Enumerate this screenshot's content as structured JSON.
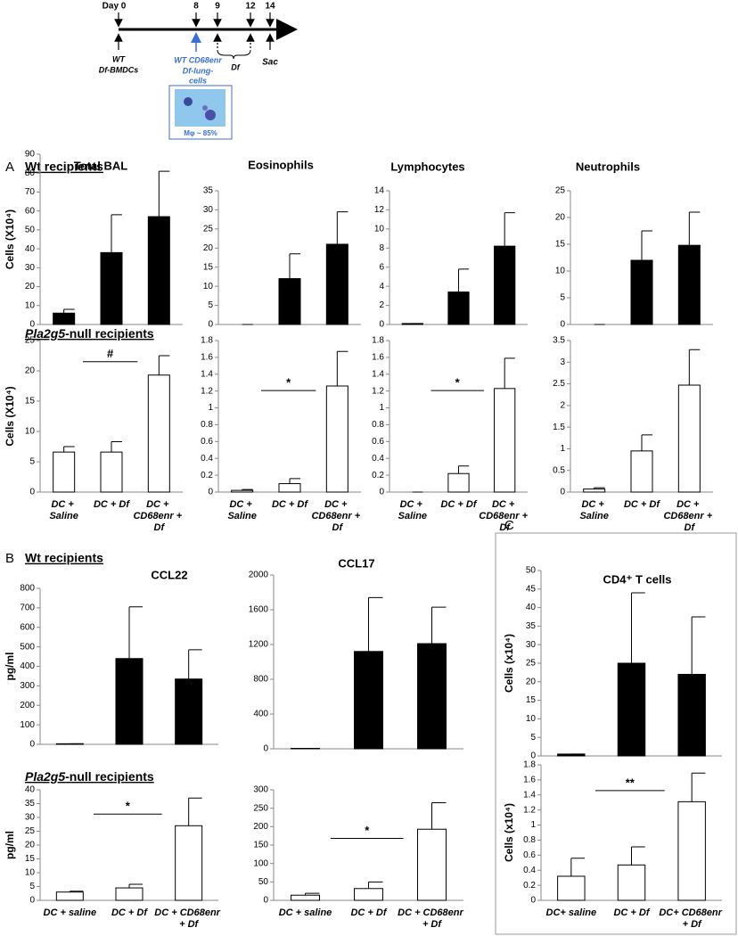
{
  "timeline": {
    "days": [
      "Day 0",
      "8",
      "9",
      "12",
      "14"
    ],
    "wt": "WT",
    "bmdc": "Df-BMDCs",
    "cd68": "WT CD68enr",
    "lung": "Df-lung-",
    "cells": "cells",
    "df": "Df",
    "sac": "Sac",
    "inset": "Mφ ~ 85%"
  },
  "figure": {
    "a_label": "A",
    "a_wt": "Wt recipients",
    "a_null_gene": "Pla2g5",
    "a_null_rest": "-null recipients",
    "b_label": "B",
    "b_wt": "Wt recipients",
    "b_null_gene": "Pla2g5",
    "b_null_rest": "-null recipients",
    "c_label": "C"
  },
  "chart_data": [
    {
      "type": "bar",
      "title": "Total BAL",
      "y_label": "Cells (X10⁴)",
      "categories": [
        null,
        null,
        null
      ],
      "values": [
        6,
        38,
        57
      ],
      "errors": [
        2,
        20,
        24
      ],
      "color": "#000000",
      "ylim": [
        0,
        90
      ],
      "yticks": [
        0,
        10,
        20,
        30,
        40,
        50,
        60,
        70,
        80,
        90
      ]
    },
    {
      "type": "bar",
      "title": "Eosinophils",
      "categories": [
        null,
        null,
        null
      ],
      "values": [
        0,
        12,
        21
      ],
      "errors": [
        0,
        6.5,
        8.5
      ],
      "color": "#000000",
      "ylim": [
        0,
        35
      ],
      "yticks": [
        0,
        5,
        10,
        15,
        20,
        25,
        30,
        35
      ]
    },
    {
      "type": "bar",
      "title": "Lymphocytes",
      "categories": [
        null,
        null,
        null
      ],
      "values": [
        0.1,
        3.4,
        8.2
      ],
      "errors": [
        0,
        2.4,
        3.5
      ],
      "color": "#000000",
      "ylim": [
        0,
        14
      ],
      "yticks": [
        0,
        2,
        4,
        6,
        8,
        10,
        12,
        14
      ]
    },
    {
      "type": "bar",
      "title": "Neutrophils",
      "categories": [
        null,
        null,
        null
      ],
      "values": [
        0,
        12,
        14.8
      ],
      "errors": [
        0,
        5.5,
        6.2
      ],
      "color": "#000000",
      "ylim": [
        0,
        25
      ],
      "yticks": [
        0,
        5,
        10,
        15,
        20,
        25
      ]
    },
    {
      "type": "bar",
      "y_label": "Cells (X10⁴)",
      "annotation": "#",
      "categories": [
        "DC + Saline",
        "DC + Df",
        "DC + CD68enr + Df"
      ],
      "values": [
        6.6,
        6.6,
        19.3
      ],
      "errors": [
        0.9,
        1.7,
        3.2
      ],
      "color": "#ffffff",
      "ylim": [
        0,
        25
      ],
      "yticks": [
        0,
        5,
        10,
        15,
        20,
        25
      ]
    },
    {
      "type": "bar",
      "annotation": "*",
      "categories": [
        "DC + Saline",
        "DC + Df",
        "DC + CD68enr + Df"
      ],
      "values": [
        0.02,
        0.1,
        1.26
      ],
      "errors": [
        0.01,
        0.06,
        0.41
      ],
      "color": "#ffffff",
      "ylim": [
        0,
        1.8
      ],
      "yticks": [
        0,
        0.2,
        0.4,
        0.6,
        0.8,
        1,
        1.2,
        1.4,
        1.6,
        1.8
      ]
    },
    {
      "type": "bar",
      "annotation": "*",
      "categories": [
        "DC + Saline",
        "DC + Df",
        "DC + CD68enr + Df"
      ],
      "values": [
        0,
        0.22,
        1.23
      ],
      "errors": [
        0,
        0.09,
        0.36
      ],
      "color": "#ffffff",
      "ylim": [
        0,
        1.8
      ],
      "yticks": [
        0,
        0.2,
        0.4,
        0.6,
        0.8,
        1,
        1.2,
        1.4,
        1.6,
        1.8
      ]
    },
    {
      "type": "bar",
      "categories": [
        "DC + Saline",
        "DC + Df",
        "DC + CD68enr + Df"
      ],
      "values": [
        0.07,
        0.95,
        2.47
      ],
      "errors": [
        0.03,
        0.37,
        0.82
      ],
      "color": "#ffffff",
      "ylim": [
        0,
        3.5
      ],
      "yticks": [
        0,
        0.5,
        1,
        1.5,
        2,
        2.5,
        3,
        3.5
      ]
    },
    {
      "type": "bar",
      "title": "CCL22",
      "y_label": "pg/ml",
      "categories": [
        null,
        null,
        null
      ],
      "values": [
        3,
        440,
        335
      ],
      "errors": [
        0,
        265,
        150
      ],
      "color": "#000000",
      "ylim": [
        0,
        800
      ],
      "yticks": [
        0,
        100,
        200,
        300,
        400,
        500,
        600,
        700,
        800
      ]
    },
    {
      "type": "bar",
      "title": "CCL17",
      "categories": [
        null,
        null,
        null
      ],
      "values": [
        5,
        1120,
        1210
      ],
      "errors": [
        0,
        620,
        420
      ],
      "color": "#000000",
      "ylim": [
        0,
        2000
      ],
      "yticks": [
        0,
        400,
        800,
        1200,
        1600,
        2000
      ]
    },
    {
      "type": "bar",
      "title": "CD4⁺ T cells",
      "y_label": "Cells (x10⁴)",
      "categories": [
        null,
        null,
        null
      ],
      "values": [
        0.5,
        25,
        22
      ],
      "errors": [
        0,
        19,
        15.5
      ],
      "color": "#000000",
      "ylim": [
        0,
        50
      ],
      "yticks": [
        0,
        5,
        10,
        15,
        20,
        25,
        30,
        35,
        40,
        45,
        50
      ]
    },
    {
      "type": "bar",
      "y_label": "pg/ml",
      "annotation": "*",
      "categories": [
        "DC + saline",
        "DC + Df",
        "DC + CD68enr + Df"
      ],
      "values": [
        3,
        4.5,
        27
      ],
      "errors": [
        0.3,
        1.3,
        10
      ],
      "color": "#ffffff",
      "ylim": [
        0,
        40
      ],
      "yticks": [
        0,
        5,
        10,
        15,
        20,
        25,
        30,
        35,
        40
      ]
    },
    {
      "type": "bar",
      "annotation": "*",
      "categories": [
        "DC + saline",
        "DC + Df",
        "DC + CD68enr + Df"
      ],
      "values": [
        14,
        32,
        193
      ],
      "errors": [
        5,
        18,
        72
      ],
      "color": "#ffffff",
      "ylim": [
        0,
        300
      ],
      "yticks": [
        0,
        50,
        100,
        150,
        200,
        250,
        300
      ]
    },
    {
      "type": "bar",
      "y_label": "Cells (x10⁴)",
      "annotation": "**",
      "categories": [
        "DC+  saline",
        "DC + Df",
        "DC+ CD68enr + Df"
      ],
      "values": [
        0.32,
        0.47,
        1.31
      ],
      "errors": [
        0.24,
        0.24,
        0.38
      ],
      "color": "#ffffff",
      "ylim": [
        0,
        1.8
      ],
      "yticks": [
        0,
        0.2,
        0.4,
        0.6,
        0.8,
        1,
        1.2,
        1.4,
        1.6,
        1.8
      ]
    }
  ]
}
